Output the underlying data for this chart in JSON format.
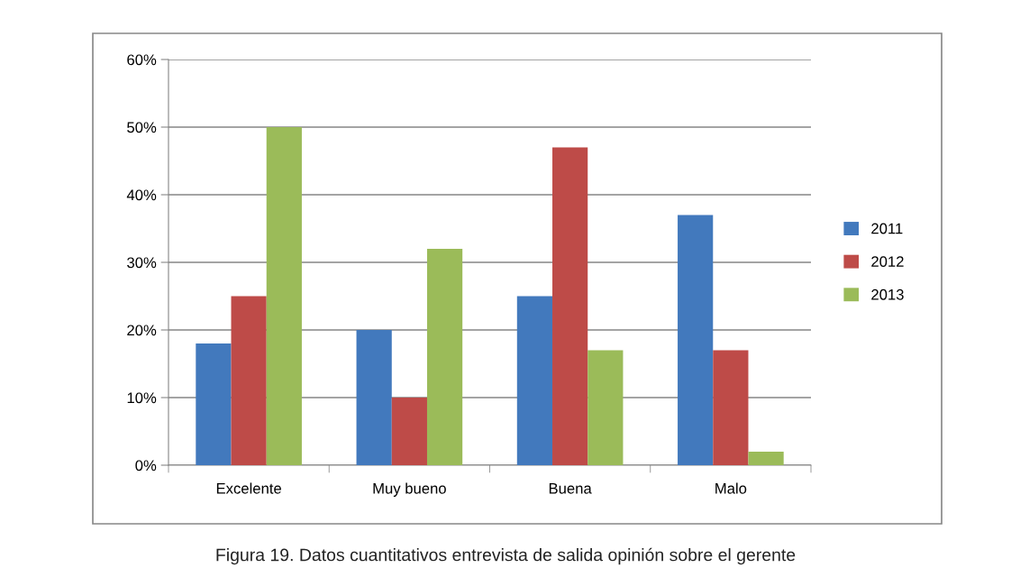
{
  "chart_data": {
    "type": "bar",
    "categories": [
      "Excelente",
      "Muy bueno",
      "Buena",
      "Malo"
    ],
    "series": [
      {
        "name": "2011",
        "color": "#4279bd",
        "values": [
          18,
          20,
          25,
          37
        ]
      },
      {
        "name": "2012",
        "color": "#be4b48",
        "values": [
          25,
          10,
          47,
          17
        ]
      },
      {
        "name": "2013",
        "color": "#9bbb59",
        "values": [
          50,
          32,
          17,
          2
        ]
      }
    ],
    "ylim": [
      0,
      60
    ],
    "yticks": [
      {
        "value": 0,
        "label": "0%"
      },
      {
        "value": 10,
        "label": "10%"
      },
      {
        "value": 20,
        "label": "20%"
      },
      {
        "value": 30,
        "label": "30%"
      },
      {
        "value": 40,
        "label": "40%"
      },
      {
        "value": 50,
        "label": "50%"
      },
      {
        "value": 60,
        "label": "60%"
      }
    ],
    "grid": "y",
    "legend": "right",
    "annotations": [
      "Figura 19. Datos cuantitativos entrevista de salida opinión sobre el gerente"
    ]
  }
}
